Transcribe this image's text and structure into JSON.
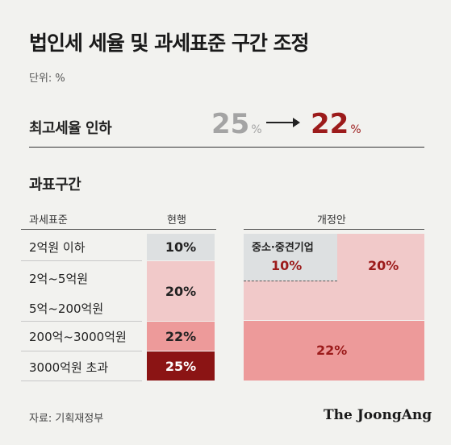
{
  "title": "법인세 세율 및 과세표준 구간 조정",
  "unit": "단위: %",
  "highlight": {
    "label": "최고세율 인하",
    "old_value": "25",
    "new_value": "22",
    "pct": "%"
  },
  "section_title": "과표구간",
  "table": {
    "col_bracket": "과세표준",
    "col_current": "현행",
    "col_proposed": "개정안",
    "rows": [
      {
        "bracket": "2억원 이하"
      },
      {
        "bracket": "2억~5억원"
      },
      {
        "bracket": "5억~200억원"
      },
      {
        "bracket": "200억~3000억원"
      },
      {
        "bracket": "3000억원 초과"
      }
    ],
    "current": [
      {
        "rate": "10%",
        "color": "#dde0e1"
      },
      {
        "rate": "20%",
        "color": "#f1c9c9"
      },
      {
        "rate": "22%",
        "color": "#ed9a9a"
      },
      {
        "rate": "25%",
        "color": "#8b1414"
      }
    ],
    "proposed": {
      "sme_label": "중소·중견기업",
      "sme_rate": "10%",
      "mid_rate": "20%",
      "top_rate": "22%",
      "color_sme": "#dde0e1",
      "color_mid": "#f1c9c9",
      "color_top": "#ed9a9a"
    }
  },
  "source": "자료: 기획재정부",
  "brand": "The JoongAng"
}
